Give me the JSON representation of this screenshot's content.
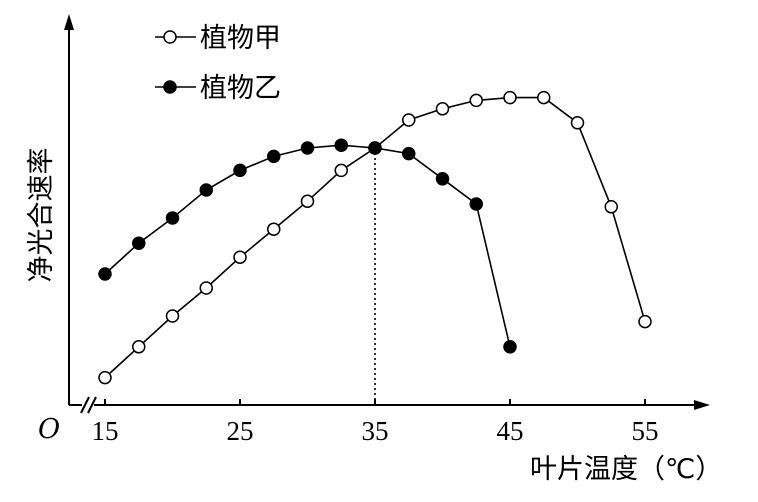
{
  "chart_data": {
    "type": "line",
    "ylabel": "净光合速率",
    "xlabel": "叶片温度（℃）",
    "origin_label": "O",
    "x_ticks": [
      15,
      25,
      35,
      45,
      55
    ],
    "xlim": [
      12,
      60
    ],
    "ylim": [
      0,
      10.5
    ],
    "y_ticks_shown": false,
    "grid": false,
    "legend_position": "top-left",
    "reference_line": {
      "x": 35,
      "style": "dotted"
    },
    "series": [
      {
        "name": "植物甲",
        "marker": "open-circle",
        "x": [
          15,
          17.5,
          20,
          22.5,
          25,
          27.5,
          30,
          32.5,
          35,
          37.5,
          40,
          42.5,
          45,
          47.5,
          50,
          52.5,
          55
        ],
        "y": [
          0.8,
          1.9,
          3.0,
          4.0,
          5.1,
          6.1,
          7.1,
          8.2,
          9.0,
          10.0,
          10.4,
          10.7,
          10.8,
          10.8,
          9.9,
          6.9,
          2.8
        ]
      },
      {
        "name": "植物乙",
        "marker": "filled-circle",
        "x": [
          15,
          17.5,
          20,
          22.5,
          25,
          27.5,
          30,
          32.5,
          35,
          37.5,
          40,
          42.5,
          45
        ],
        "y": [
          4.5,
          5.6,
          6.5,
          7.5,
          8.2,
          8.7,
          9.0,
          9.1,
          9.0,
          8.8,
          7.9,
          7.0,
          1.9
        ]
      }
    ]
  }
}
